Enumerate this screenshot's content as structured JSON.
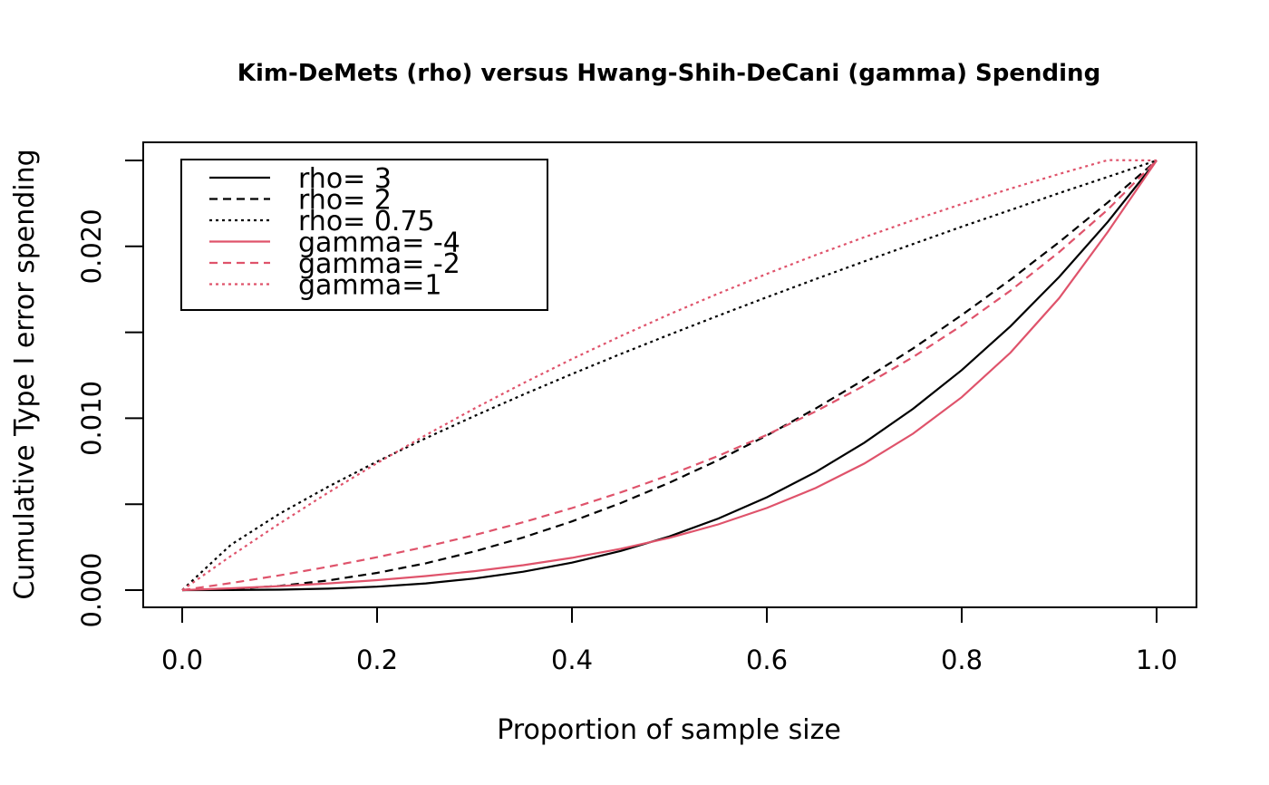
{
  "chart_data": {
    "type": "line",
    "title": "Kim-DeMets (rho) versus Hwang-Shih-DeCani (gamma) Spending",
    "xlabel": "Proportion of sample size",
    "ylabel": "Cumulative Type I error spending",
    "xlim": [
      0,
      1
    ],
    "ylim": [
      0,
      0.025
    ],
    "x_ticks": [
      0.0,
      0.2,
      0.4,
      0.6,
      0.8,
      1.0
    ],
    "x_tick_labels": [
      "0.0",
      "0.2",
      "0.4",
      "0.6",
      "0.8",
      "1.0"
    ],
    "y_ticks": [
      0.0,
      0.005,
      0.01,
      0.015,
      0.02,
      0.025
    ],
    "y_tick_labels": [
      "0.000",
      "",
      "0.010",
      "",
      "0.020",
      ""
    ],
    "grid": false,
    "legend_position": "top-left",
    "x": [
      0,
      0.05,
      0.1,
      0.15,
      0.2,
      0.25,
      0.3,
      0.35,
      0.4,
      0.45,
      0.5,
      0.55,
      0.6,
      0.65,
      0.7,
      0.75,
      0.8,
      0.85,
      0.9,
      0.95,
      1.0
    ],
    "series": [
      {
        "name": "rho= 3",
        "color": "#000000",
        "dash": "solid",
        "values": [
          0,
          3e-06,
          2.5e-05,
          8.4e-05,
          0.0002,
          0.000391,
          0.000675,
          0.001072,
          0.0016,
          0.002278,
          0.003125,
          0.004159,
          0.0054,
          0.006866,
          0.008575,
          0.010547,
          0.0128,
          0.015353,
          0.018225,
          0.021434,
          0.025
        ]
      },
      {
        "name": "rho= 2",
        "color": "#000000",
        "dash": "dashed",
        "values": [
          0,
          6.25e-05,
          0.00025,
          0.000563,
          0.001,
          0.001563,
          0.00225,
          0.003063,
          0.004,
          0.005063,
          0.00625,
          0.007563,
          0.009,
          0.010563,
          0.01225,
          0.014063,
          0.016,
          0.018063,
          0.02025,
          0.022563,
          0.025
        ]
      },
      {
        "name": "rho= 0.75",
        "color": "#000000",
        "dash": "dotted",
        "values": [
          0,
          0.002643,
          0.004446,
          0.006025,
          0.007477,
          0.008839,
          0.010134,
          0.011376,
          0.012575,
          0.013737,
          0.014865,
          0.015966,
          0.017042,
          0.018094,
          0.019125,
          0.020135,
          0.021147,
          0.022117,
          0.023103,
          0.024045,
          0.025
        ]
      },
      {
        "name": "gamma= -4",
        "color": "#DF536B",
        "dash": "solid",
        "values": [
          0,
          0.000104,
          0.000232,
          0.000388,
          0.00058,
          0.000815,
          0.001102,
          0.001452,
          0.00188,
          0.002403,
          0.003042,
          0.003823,
          0.004777,
          0.005941,
          0.007364,
          0.009102,
          0.011225,
          0.013818,
          0.016986,
          0.020855,
          0.025
        ]
      },
      {
        "name": "gamma= -2",
        "color": "#DF536B",
        "dash": "dashed",
        "values": [
          0,
          0.000409,
          0.000862,
          0.001362,
          0.001915,
          0.002526,
          0.003201,
          0.003948,
          0.004772,
          0.005684,
          0.006692,
          0.007805,
          0.009036,
          0.010396,
          0.0119,
          0.013561,
          0.015397,
          0.017427,
          0.019669,
          0.022148,
          0.025
        ]
      },
      {
        "name": "gamma=1",
        "color": "#DF536B",
        "dash": "dotted",
        "values": [
          0,
          0.001988,
          0.003879,
          0.005679,
          0.007391,
          0.00902,
          0.010569,
          0.012043,
          0.013445,
          0.014778,
          0.016047,
          0.017254,
          0.018403,
          0.019495,
          0.020535,
          0.021524,
          0.022465,
          0.02336,
          0.024212,
          0.025022,
          0.025
        ]
      }
    ]
  }
}
